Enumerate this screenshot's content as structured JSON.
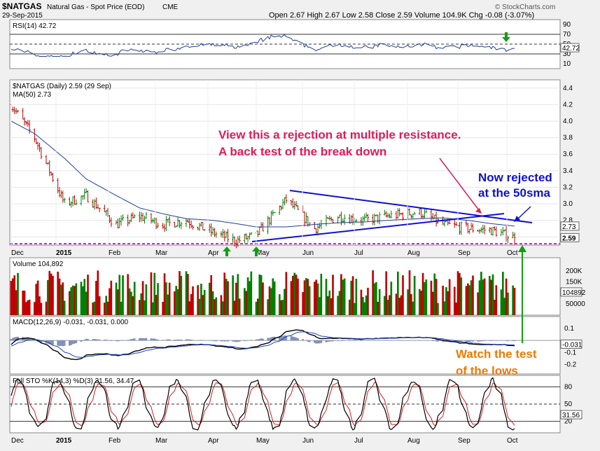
{
  "header": {
    "symbol": "$NATGAS",
    "name": "Natural Gas - Spot Price (EOD)",
    "exchange": "CME",
    "date": "29-Sep-2015",
    "source": "© StockCharts.com",
    "ohlc": "Open 2.67  High 2.67  Low 2.58  Close 2.59  Volume 104.9K  Chg -0.08 (-3.07%)"
  },
  "rsi": {
    "label": "RSI(14) 42.72",
    "value_label": "42.72",
    "value": 42.72,
    "levels": [
      70,
      30
    ],
    "ticks": [
      "90",
      "70",
      "50",
      "30",
      "10"
    ]
  },
  "price": {
    "label": "$NATGAS (Daily) 2.59 (29 Sep)",
    "ma_label": "MA(50) 2.73",
    "ma_value_label": "2.73",
    "last_value_label": "2.59",
    "ticks": [
      "4.4",
      "4.2",
      "4.0",
      "3.8",
      "3.6",
      "3.4",
      "3.2",
      "3.0",
      "2.8",
      "2.6"
    ]
  },
  "volume": {
    "label": "Volume 104,892",
    "value_label": "104892",
    "ticks": [
      "200K",
      "150K",
      "100K",
      "50000"
    ]
  },
  "macd": {
    "label": "MACD(12,26,9) -0.031, -0.031, 0.000",
    "value_label": "-0.031",
    "ticks": [
      "0.1",
      "0.0",
      "-0.1",
      "-0.2"
    ]
  },
  "sto": {
    "label": "Full STO %K(14,3) %D(3) 31.56, 34.47",
    "value_label": "31.56",
    "ticks": [
      "80",
      "50",
      "20"
    ]
  },
  "x_labels": [
    "Dec",
    "2015",
    "Feb",
    "Mar",
    "Apr",
    "May",
    "Jun",
    "Jul",
    "Aug",
    "Sep",
    "Oct"
  ],
  "annotations": {
    "rejection_line1": "View this a rejection at multiple resistance.",
    "rejection_line2": "A back test of the break down",
    "ma_line1": "Now rejected",
    "ma_line2": "at the 50sma",
    "lows_line1": "Watch the test",
    "lows_line2": "of the lows"
  },
  "colors": {
    "panel_bg": "#ffffff",
    "price_up": "#008000",
    "price_down": "#c00000",
    "ma": "#1f3f9f",
    "trendline": "#1010d0",
    "support_line": "#e020e0",
    "arrow": "#10a010",
    "ann_red": "#e01a5a",
    "ann_blue": "#1010d0",
    "ann_orange": "#f07800"
  },
  "chart_data": {
    "type": "line",
    "x": [
      "2014-12-01",
      "2014-12-15",
      "2015-01-02",
      "2015-01-15",
      "2015-02-02",
      "2015-02-16",
      "2015-03-02",
      "2015-03-16",
      "2015-04-01",
      "2015-04-15",
      "2015-04-27",
      "2015-05-15",
      "2015-06-01",
      "2015-06-15",
      "2015-07-01",
      "2015-07-15",
      "2015-08-03",
      "2015-08-17",
      "2015-09-01",
      "2015-09-15",
      "2015-09-29"
    ],
    "series": [
      {
        "name": "$NATGAS",
        "values": [
          4.2,
          3.8,
          3.0,
          3.1,
          2.75,
          2.85,
          2.75,
          2.8,
          2.65,
          2.55,
          2.62,
          3.05,
          2.7,
          2.85,
          2.8,
          2.85,
          2.9,
          2.75,
          2.7,
          2.68,
          2.59
        ]
      },
      {
        "name": "MA(50)",
        "values": [
          4.0,
          3.85,
          3.55,
          3.3,
          3.1,
          2.95,
          2.88,
          2.82,
          2.8,
          2.76,
          2.72,
          2.72,
          2.75,
          2.77,
          2.78,
          2.8,
          2.82,
          2.83,
          2.8,
          2.76,
          2.73
        ]
      }
    ],
    "ylim": [
      2.5,
      4.5
    ]
  }
}
